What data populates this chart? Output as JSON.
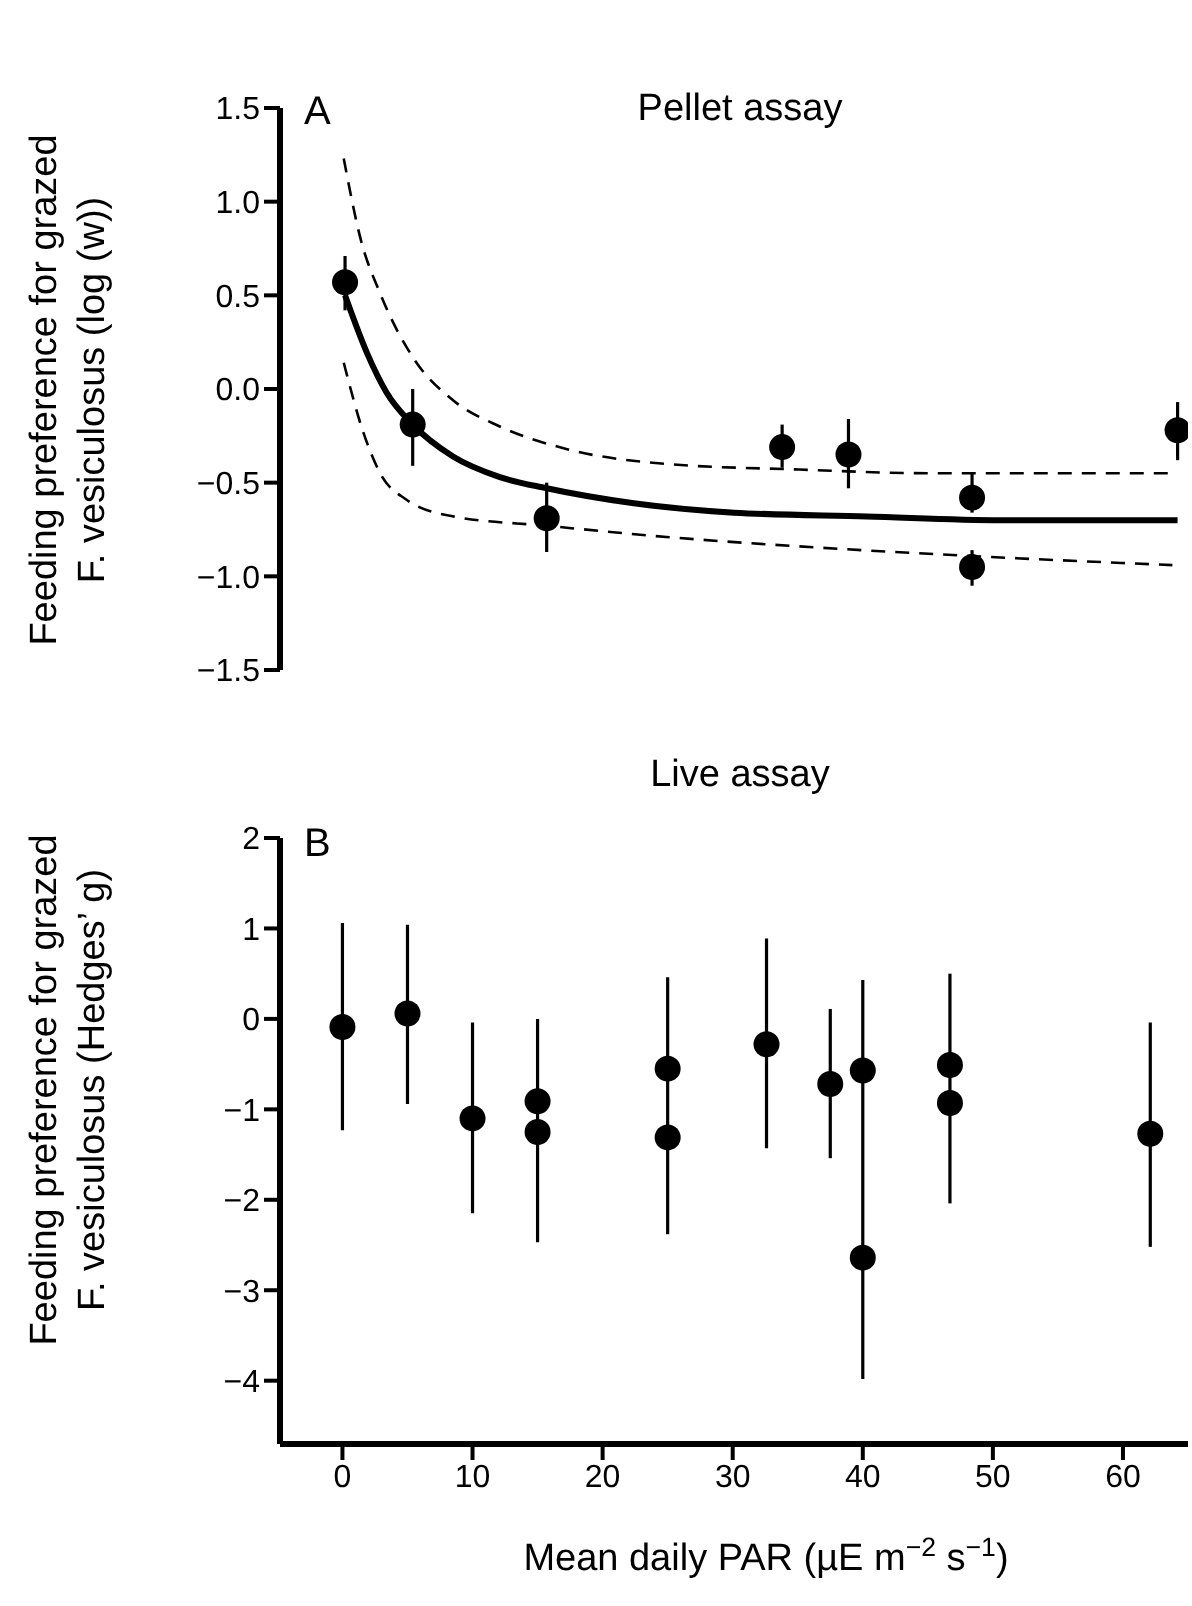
{
  "chart_data": [
    {
      "type": "scatter",
      "title": "Pellet assay",
      "ylabel": "Feeding preference for grazed\nF. vesiculosus (log (w))",
      "annotations": [
        "A"
      ],
      "xlim": [
        -4.8,
        65
      ],
      "ylim": [
        -1.5,
        1.5
      ],
      "yticks": [
        1.5,
        {
          "value": 1,
          "label": "1.0"
        },
        0.5,
        {
          "value": 0,
          "label": "0.0"
        },
        {
          "value": -0.5,
          "label": "−0.5"
        },
        {
          "value": -1,
          "label": "−1.0"
        },
        {
          "value": -1.5,
          "label": "−1.5"
        }
      ],
      "tick_labels": "y",
      "series": [
        {
          "type": "scatter",
          "color": "#000000",
          "marker": "circle",
          "x": [
            0.2,
            5.4,
            15.7,
            33.8,
            38.9,
            48.4,
            48.4,
            64.2
          ],
          "values": [
            0.57,
            -0.19,
            -0.69,
            -0.31,
            -0.35,
            -0.58,
            -0.95,
            -0.22
          ],
          "errors": [
            [
              0.42,
              0.71
            ],
            [
              -0.41,
              0.0
            ],
            [
              -0.87,
              -0.5
            ],
            [
              -0.42,
              -0.19
            ],
            [
              -0.53,
              -0.16
            ],
            [
              -0.66,
              -0.45
            ],
            [
              -1.05,
              -0.86
            ],
            [
              -0.38,
              -0.07
            ]
          ]
        },
        {
          "type": "line",
          "color": "#000000",
          "marker": "none",
          "line_style": "solid",
          "x": [
            0.2,
            1.9,
            3.4,
            5.4,
            8.5,
            12.1,
            15.7,
            22.4,
            30.1,
            40.3,
            50.6,
            64.2
          ],
          "values": [
            0.5,
            0.19,
            -0.02,
            -0.19,
            -0.36,
            -0.47,
            -0.53,
            -0.61,
            -0.66,
            -0.68,
            -0.7,
            -0.7
          ]
        },
        {
          "type": "line",
          "color": "#000000",
          "marker": "none",
          "line_style": "dashed",
          "x": [
            0.1,
            1.4,
            2.9,
            5.5,
            8.5,
            12.1,
            17.2,
            24.9,
            35.1,
            45.4,
            63.8
          ],
          "values": [
            1.23,
            0.8,
            0.51,
            0.16,
            -0.06,
            -0.2,
            -0.32,
            -0.4,
            -0.43,
            -0.45,
            -0.45
          ]
        },
        {
          "type": "line",
          "color": "#000000",
          "marker": "none",
          "line_style": "dashed",
          "x": [
            0.1,
            1.6,
            2.9,
            4.9,
            8.5,
            15.7,
            24.9,
            35.1,
            47.9,
            63.8
          ],
          "values": [
            0.14,
            -0.23,
            -0.45,
            -0.59,
            -0.68,
            -0.73,
            -0.79,
            -0.84,
            -0.89,
            -0.94
          ]
        }
      ]
    },
    {
      "type": "scatter",
      "title": "Live assay",
      "ylabel": "Feeding preference for grazed\nF. vesiculosus (Hedges’ g)",
      "xlabel": "Mean daily PAR (µE m$^{−2}$ s$^{−1}$)",
      "annotations": [
        "B"
      ],
      "xlim": [
        -4.8,
        65
      ],
      "xticks": [
        0,
        10,
        20,
        30,
        40,
        50,
        60
      ],
      "ylim": [
        -4.7,
        2
      ],
      "yticks": [
        2,
        1,
        0,
        {
          "value": -1,
          "label": "−1"
        },
        {
          "value": -2,
          "label": "−2"
        },
        {
          "value": -3,
          "label": "−3"
        },
        {
          "value": -4,
          "label": "−4"
        }
      ],
      "series": [
        {
          "type": "scatter",
          "color": "#000000",
          "marker": "circle",
          "x": [
            0,
            5,
            10,
            15,
            15,
            25,
            25,
            32.6,
            37.5,
            40,
            40,
            46.7,
            46.7,
            62.1
          ],
          "values": [
            -0.09,
            0.06,
            -1.1,
            -0.91,
            -1.25,
            -0.55,
            -1.31,
            -0.28,
            -0.72,
            -0.57,
            -2.64,
            -0.51,
            -0.93,
            -1.27
          ],
          "errors": [
            [
              -1.23,
              1.06
            ],
            [
              -0.94,
              1.04
            ],
            [
              -2.15,
              -0.04
            ],
            null,
            [
              -2.47,
              0.0
            ],
            null,
            [
              -2.38,
              0.46
            ],
            [
              -1.43,
              0.89
            ],
            [
              -1.54,
              0.11
            ],
            null,
            [
              -3.98,
              0.43
            ],
            null,
            [
              -2.04,
              0.5
            ],
            [
              -2.52,
              -0.04
            ]
          ]
        }
      ]
    }
  ]
}
